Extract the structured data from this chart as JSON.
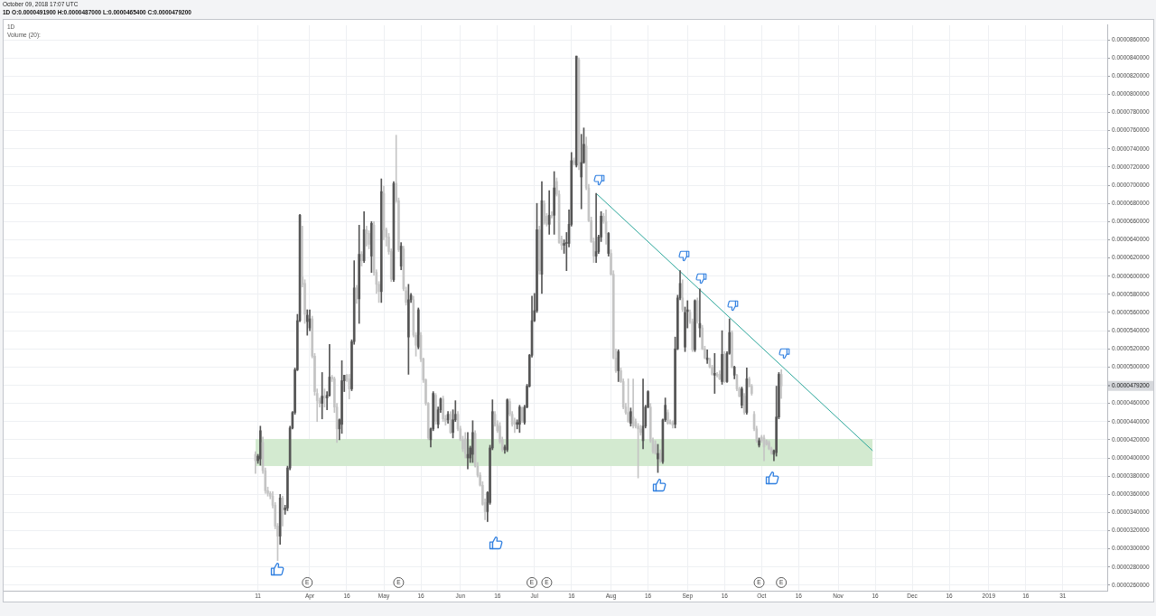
{
  "chart_data": {
    "type": "candlestick",
    "subtitle": "October 09, 2018 17:07 UTC",
    "title": "1D O:0.0000491900 H:0.0000487000 L:0.0000465400 C:0.0000479200",
    "x": [
      "2018-03-10",
      "2018-03-11",
      "2018-03-12",
      "2018-03-13",
      "2018-03-14",
      "2018-03-15",
      "2018-03-16",
      "2018-03-17",
      "2018-03-18",
      "2018-03-19",
      "2018-03-20",
      "2018-03-21",
      "2018-03-22",
      "2018-03-23",
      "2018-03-24",
      "2018-03-25",
      "2018-03-26",
      "2018-03-27",
      "2018-03-28",
      "2018-03-29",
      "2018-03-30",
      "2018-03-31",
      "2018-04-01",
      "2018-04-02",
      "2018-04-03",
      "2018-04-04",
      "2018-04-05",
      "2018-04-06",
      "2018-04-07",
      "2018-04-08",
      "2018-04-09",
      "2018-04-10",
      "2018-04-11",
      "2018-04-12",
      "2018-04-13",
      "2018-04-14",
      "2018-04-15",
      "2018-04-16",
      "2018-04-17",
      "2018-04-18",
      "2018-04-19",
      "2018-04-20",
      "2018-04-21",
      "2018-04-22",
      "2018-04-23",
      "2018-04-24",
      "2018-04-25",
      "2018-04-26",
      "2018-04-27",
      "2018-04-28",
      "2018-04-29",
      "2018-04-30",
      "2018-05-01",
      "2018-05-02",
      "2018-05-03",
      "2018-05-04",
      "2018-05-05",
      "2018-05-06",
      "2018-05-07",
      "2018-05-08",
      "2018-05-09",
      "2018-05-10",
      "2018-05-11",
      "2018-05-12",
      "2018-05-13",
      "2018-05-14",
      "2018-05-15",
      "2018-05-16",
      "2018-05-17",
      "2018-05-18",
      "2018-05-19",
      "2018-05-20",
      "2018-05-21",
      "2018-05-22",
      "2018-05-23",
      "2018-05-24",
      "2018-05-25",
      "2018-05-26",
      "2018-05-27",
      "2018-05-28",
      "2018-05-29",
      "2018-05-30",
      "2018-05-31",
      "2018-06-01",
      "2018-06-02",
      "2018-06-03",
      "2018-06-04",
      "2018-06-05",
      "2018-06-06",
      "2018-06-07",
      "2018-06-08",
      "2018-06-09",
      "2018-06-10",
      "2018-06-11",
      "2018-06-12",
      "2018-06-13",
      "2018-06-14",
      "2018-06-15",
      "2018-06-16",
      "2018-06-17",
      "2018-06-18",
      "2018-06-19",
      "2018-06-20",
      "2018-06-21",
      "2018-06-22",
      "2018-06-23",
      "2018-06-24",
      "2018-06-25",
      "2018-06-26",
      "2018-06-27",
      "2018-06-28",
      "2018-06-29",
      "2018-06-30",
      "2018-07-01",
      "2018-07-02",
      "2018-07-03",
      "2018-07-04",
      "2018-07-05",
      "2018-07-06",
      "2018-07-07",
      "2018-07-08",
      "2018-07-09",
      "2018-07-10",
      "2018-07-11",
      "2018-07-12",
      "2018-07-13",
      "2018-07-14",
      "2018-07-15",
      "2018-07-16",
      "2018-07-17",
      "2018-07-18",
      "2018-07-19",
      "2018-07-20",
      "2018-07-21",
      "2018-07-22",
      "2018-07-23",
      "2018-07-24",
      "2018-07-25",
      "2018-07-26",
      "2018-07-27",
      "2018-07-28",
      "2018-07-29",
      "2018-07-30",
      "2018-07-31",
      "2018-08-01",
      "2018-08-02",
      "2018-08-03",
      "2018-08-04",
      "2018-08-05",
      "2018-08-06",
      "2018-08-07",
      "2018-08-08",
      "2018-08-09",
      "2018-08-10",
      "2018-08-11",
      "2018-08-12",
      "2018-08-13",
      "2018-08-14",
      "2018-08-15",
      "2018-08-16",
      "2018-08-17",
      "2018-08-18",
      "2018-08-19",
      "2018-08-20",
      "2018-08-21",
      "2018-08-22",
      "2018-08-23",
      "2018-08-24",
      "2018-08-25",
      "2018-08-26",
      "2018-08-27",
      "2018-08-28",
      "2018-08-29",
      "2018-08-30",
      "2018-08-31",
      "2018-09-01",
      "2018-09-02",
      "2018-09-03",
      "2018-09-04",
      "2018-09-05",
      "2018-09-06",
      "2018-09-07",
      "2018-09-08",
      "2018-09-09",
      "2018-09-10",
      "2018-09-11",
      "2018-09-12",
      "2018-09-13",
      "2018-09-14",
      "2018-09-15",
      "2018-09-16",
      "2018-09-17",
      "2018-09-18",
      "2018-09-19",
      "2018-09-20",
      "2018-09-21",
      "2018-09-22",
      "2018-09-23",
      "2018-09-24",
      "2018-09-25",
      "2018-09-26",
      "2018-09-27",
      "2018-09-28",
      "2018-09-29",
      "2018-09-30",
      "2018-10-01",
      "2018-10-02",
      "2018-10-03",
      "2018-10-04",
      "2018-10-05",
      "2018-10-06",
      "2018-10-07",
      "2018-10-08",
      "2018-10-09"
    ],
    "ohlc": [
      [
        4.04e-05,
        4.07e-05,
        3.83e-05,
        3.97e-05
      ],
      [
        3.97e-05,
        4.04e-05,
        3.94e-05,
        4.02e-05
      ],
      [
        3.99e-05,
        4.35e-05,
        3.92e-05,
        4.3e-05
      ],
      [
        4.17e-05,
        4.23e-05,
        3.83e-05,
        3.86e-05
      ],
      [
        3.86e-05,
        3.89e-05,
        3.61e-05,
        3.64e-05
      ],
      [
        3.64e-05,
        3.68e-05,
        3.58e-05,
        3.61e-05
      ],
      [
        3.61e-05,
        3.63e-05,
        3.55e-05,
        3.58e-05
      ],
      [
        3.58e-05,
        3.63e-05,
        3.45e-05,
        3.48e-05
      ],
      [
        3.48e-05,
        3.51e-05,
        3.22e-05,
        3.25e-05
      ],
      [
        3.25e-05,
        3.28e-05,
        2.87e-05,
        3.14e-05
      ],
      [
        3.14e-05,
        3.6e-05,
        3.05e-05,
        3.56e-05
      ],
      [
        3.56e-05,
        3.58e-05,
        3.25e-05,
        3.43e-05
      ],
      [
        3.43e-05,
        3.48e-05,
        3.38e-05,
        3.45e-05
      ],
      [
        3.45e-05,
        3.91e-05,
        3.42e-05,
        3.89e-05
      ],
      [
        3.89e-05,
        4.35e-05,
        3.87e-05,
        4.33e-05
      ],
      [
        4.33e-05,
        4.51e-05,
        4.32e-05,
        4.5e-05
      ],
      [
        4.5e-05,
        4.99e-05,
        4.48e-05,
        4.97e-05
      ],
      [
        4.97e-05,
        5.58e-05,
        4.96e-05,
        5.51e-05
      ],
      [
        5.51e-05,
        6.68e-05,
        5.5e-05,
        6.67e-05
      ],
      [
        5.99e-05,
        6.55e-05,
        5.88e-05,
        5.91e-05
      ],
      [
        5.92e-05,
        5.96e-05,
        5.48e-05,
        5.58e-05
      ],
      [
        5.5e-05,
        5.63e-05,
        5.35e-05,
        5.57e-05
      ],
      [
        5.43e-05,
        5.63e-05,
        5.4e-05,
        5.53e-05
      ],
      [
        5.53e-05,
        5.56e-05,
        5.1e-05,
        5.12e-05
      ],
      [
        5.12e-05,
        5.15e-05,
        4.69e-05,
        4.73e-05
      ],
      [
        4.71e-05,
        4.76e-05,
        4.4e-05,
        4.63e-05
      ],
      [
        4.63e-05,
        4.66e-05,
        4.56e-05,
        4.6e-05
      ],
      [
        4.6e-05,
        4.94e-05,
        4.43e-05,
        4.68e-05
      ],
      [
        4.68e-05,
        4.76e-05,
        4.56e-05,
        4.66e-05
      ],
      [
        4.66e-05,
        4.73e-05,
        4.53e-05,
        4.69e-05
      ],
      [
        4.69e-05,
        5.25e-05,
        4.68e-05,
        4.89e-05
      ],
      [
        4.89e-05,
        4.91e-05,
        4.84e-05,
        4.87e-05
      ],
      [
        4.87e-05,
        4.89e-05,
        4.5e-05,
        4.56e-05
      ],
      [
        4.56e-05,
        4.6e-05,
        4.17e-05,
        4.32e-05
      ],
      [
        4.32e-05,
        4.43e-05,
        4.2e-05,
        4.42e-05
      ],
      [
        4.37e-05,
        5.07e-05,
        4.27e-05,
        4.85e-05
      ],
      [
        4.85e-05,
        4.91e-05,
        4.73e-05,
        4.91e-05
      ],
      [
        4.91e-05,
        4.92e-05,
        4.84e-05,
        4.87e-05
      ],
      [
        4.87e-05,
        4.92e-05,
        4.65e-05,
        4.76e-05
      ],
      [
        4.76e-05,
        5.3e-05,
        4.74e-05,
        5.28e-05
      ],
      [
        5.28e-05,
        6.17e-05,
        5.25e-05,
        5.87e-05
      ],
      [
        5.87e-05,
        5.9e-05,
        5.7e-05,
        5.75e-05
      ],
      [
        5.75e-05,
        6.56e-05,
        5.48e-05,
        6.24e-05
      ],
      [
        6.24e-05,
        6.27e-05,
        6.11e-05,
        6.17e-05
      ],
      [
        6.17e-05,
        6.71e-05,
        6.15e-05,
        6.51e-05
      ],
      [
        6.51e-05,
        6.55e-05,
        6.33e-05,
        6.47e-05
      ],
      [
        6.47e-05,
        6.5e-05,
        6.3e-05,
        6.35e-05
      ],
      [
        6.22e-05,
        6.6e-05,
        6.04e-05,
        6.58e-05
      ],
      [
        6.56e-05,
        6.6e-05,
        6.01e-05,
        6.04e-05
      ],
      [
        6.04e-05,
        6.07e-05,
        5.81e-05,
        5.91e-05
      ],
      [
        5.91e-05,
        5.94e-05,
        5.71e-05,
        5.83e-05
      ],
      [
        5.83e-05,
        7.07e-05,
        5.71e-05,
        6.93e-05
      ],
      [
        6.91e-05,
        6.99e-05,
        6.4e-05,
        6.51e-05
      ],
      [
        6.51e-05,
        6.53e-05,
        6.33e-05,
        6.43e-05
      ],
      [
        6.43e-05,
        6.47e-05,
        6.24e-05,
        6.27e-05
      ],
      [
        6.27e-05,
        6.3e-05,
        5.94e-05,
        5.97e-05
      ],
      [
        5.96e-05,
        7.04e-05,
        5.94e-05,
        7.02e-05
      ],
      [
        7.02e-05,
        7.55e-05,
        6.81e-05,
        6.83e-05
      ],
      [
        6.83e-05,
        6.86e-05,
        6.27e-05,
        6.29e-05
      ],
      [
        6.11e-05,
        6.37e-05,
        6.07e-05,
        6.33e-05
      ],
      [
        6.3e-05,
        6.33e-05,
        5.84e-05,
        5.86e-05
      ],
      [
        5.84e-05,
        5.88e-05,
        5.68e-05,
        5.71e-05
      ],
      [
        5.33e-05,
        5.91e-05,
        4.92e-05,
        5.74e-05
      ],
      [
        5.74e-05,
        5.81e-05,
        5.71e-05,
        5.79e-05
      ],
      [
        5.74e-05,
        5.78e-05,
        5.33e-05,
        5.35e-05
      ],
      [
        5.35e-05,
        5.38e-05,
        5.12e-05,
        5.24e-05
      ],
      [
        5.22e-05,
        5.65e-05,
        5.2e-05,
        5.63e-05
      ],
      [
        5.35e-05,
        5.38e-05,
        5.06e-05,
        5.09e-05
      ],
      [
        5.09e-05,
        5.1e-05,
        4.83e-05,
        4.86e-05
      ],
      [
        4.86e-05,
        4.87e-05,
        4.58e-05,
        4.6e-05
      ],
      [
        4.6e-05,
        4.61e-05,
        4.2e-05,
        4.22e-05
      ],
      [
        4.2e-05,
        4.33e-05,
        4.12e-05,
        4.32e-05
      ],
      [
        4.32e-05,
        4.73e-05,
        4.3e-05,
        4.71e-05
      ],
      [
        4.69e-05,
        4.71e-05,
        4.37e-05,
        4.4e-05
      ],
      [
        4.37e-05,
        4.56e-05,
        4.33e-05,
        4.53e-05
      ],
      [
        4.53e-05,
        4.66e-05,
        4.5e-05,
        4.65e-05
      ],
      [
        4.65e-05,
        4.68e-05,
        4.4e-05,
        4.43e-05
      ],
      [
        4.43e-05,
        4.47e-05,
        4.36e-05,
        4.4e-05
      ],
      [
        4.42e-05,
        4.51e-05,
        4.38e-05,
        4.48e-05
      ],
      [
        4.48e-05,
        4.51e-05,
        4.27e-05,
        4.28e-05
      ],
      [
        4.28e-05,
        4.53e-05,
        4.22e-05,
        4.42e-05
      ],
      [
        4.42e-05,
        4.63e-05,
        4.4e-05,
        4.48e-05
      ],
      [
        4.48e-05,
        4.51e-05,
        4.3e-05,
        4.32e-05
      ],
      [
        4.32e-05,
        4.35e-05,
        4.19e-05,
        4.2e-05
      ],
      [
        4.2e-05,
        4.24e-05,
        4.07e-05,
        4.1e-05
      ],
      [
        4.21e-05,
        4.28e-05,
        4e-05,
        4.05e-05
      ],
      [
        4e-05,
        4.28e-05,
        3.88e-05,
        4.04e-05
      ],
      [
        4e-05,
        4.13e-05,
        3.95e-05,
        4.11e-05
      ],
      [
        4.04e-05,
        4.41e-05,
        3.95e-05,
        4.28e-05
      ],
      [
        4.27e-05,
        4.3e-05,
        3.9e-05,
        3.91e-05
      ],
      [
        3.91e-05,
        3.95e-05,
        3.79e-05,
        3.81e-05
      ],
      [
        3.81e-05,
        3.84e-05,
        3.69e-05,
        3.7e-05
      ],
      [
        3.7e-05,
        3.74e-05,
        3.48e-05,
        3.49e-05
      ],
      [
        3.51e-05,
        3.55e-05,
        3.32e-05,
        3.41e-05
      ],
      [
        3.41e-05,
        3.63e-05,
        3.3e-05,
        3.62e-05
      ],
      [
        3.51e-05,
        4.14e-05,
        3.49e-05,
        4.11e-05
      ],
      [
        4.11e-05,
        4.64e-05,
        4.09e-05,
        4.51e-05
      ],
      [
        4.48e-05,
        4.51e-05,
        4.35e-05,
        4.37e-05
      ],
      [
        4.37e-05,
        4.41e-05,
        4.28e-05,
        4.3e-05
      ],
      [
        4.35e-05,
        4.39e-05,
        4.16e-05,
        4.18e-05
      ],
      [
        4.2e-05,
        4.23e-05,
        4.07e-05,
        4.09e-05
      ],
      [
        4.09e-05,
        4.14e-05,
        4.05e-05,
        4.12e-05
      ],
      [
        4.09e-05,
        4.65e-05,
        4.07e-05,
        4.64e-05
      ],
      [
        4.62e-05,
        4.65e-05,
        4.46e-05,
        4.48e-05
      ],
      [
        4.48e-05,
        4.51e-05,
        4.35e-05,
        4.37e-05
      ],
      [
        4.41e-05,
        4.44e-05,
        4.28e-05,
        4.37e-05
      ],
      [
        4.37e-05,
        4.42e-05,
        4.32e-05,
        4.39e-05
      ],
      [
        4.37e-05,
        4.58e-05,
        4.28e-05,
        4.56e-05
      ],
      [
        4.55e-05,
        4.56e-05,
        4.39e-05,
        4.41e-05
      ],
      [
        4.39e-05,
        4.58e-05,
        4.37e-05,
        4.56e-05
      ],
      [
        4.56e-05,
        4.81e-05,
        4.55e-05,
        4.79e-05
      ],
      [
        4.79e-05,
        5.14e-05,
        4.78e-05,
        5.13e-05
      ],
      [
        5.13e-05,
        5.78e-05,
        5.11e-05,
        5.51e-05
      ],
      [
        5.51e-05,
        5.81e-05,
        5.5e-05,
        5.62e-05
      ],
      [
        5.62e-05,
        6.8e-05,
        5.6e-05,
        6.51e-05
      ],
      [
        6.51e-05,
        6.55e-05,
        6.02e-05,
        6.06e-05
      ],
      [
        6.02e-05,
        7.04e-05,
        5.81e-05,
        6.83e-05
      ],
      [
        6.8e-05,
        6.83e-05,
        6.57e-05,
        6.59e-05
      ],
      [
        6.66e-05,
        6.69e-05,
        6.55e-05,
        6.57e-05
      ],
      [
        6.57e-05,
        6.94e-05,
        6.46e-05,
        6.67e-05
      ],
      [
        6.67e-05,
        6.71e-05,
        6.64e-05,
        6.66e-05
      ],
      [
        6.67e-05,
        7.15e-05,
        6.46e-05,
        6.97e-05
      ],
      [
        7.04e-05,
        7.08e-05,
        6.88e-05,
        6.9e-05
      ],
      [
        6.9e-05,
        6.94e-05,
        6.36e-05,
        6.37e-05
      ],
      [
        6.41e-05,
        6.44e-05,
        6.29e-05,
        6.34e-05
      ],
      [
        6.34e-05,
        6.4e-05,
        6.25e-05,
        6.36e-05
      ],
      [
        6.36e-05,
        6.48e-05,
        6.06e-05,
        6.37e-05
      ],
      [
        6.36e-05,
        6.73e-05,
        6.32e-05,
        6.57e-05
      ],
      [
        6.57e-05,
        7.36e-05,
        6.55e-05,
        7.27e-05
      ],
      [
        7.27e-05,
        7.3e-05,
        7.22e-05,
        7.24e-05
      ],
      [
        7.22e-05,
        8.42e-05,
        7.2e-05,
        8.42e-05
      ],
      [
        8.38e-05,
        8.4e-05,
        7.17e-05,
        7.24e-05
      ],
      [
        7.09e-05,
        7.56e-05,
        6.74e-05,
        7.25e-05
      ],
      [
        7.25e-05,
        7.63e-05,
        7.24e-05,
        7.45e-05
      ],
      [
        7.43e-05,
        7.53e-05,
        6.95e-05,
        6.97e-05
      ],
      [
        6.97e-05,
        7.01e-05,
        6.6e-05,
        6.61e-05
      ],
      [
        6.61e-05,
        6.65e-05,
        6.37e-05,
        6.38e-05
      ],
      [
        6.38e-05,
        6.42e-05,
        6.15e-05,
        6.22e-05
      ],
      [
        6.22e-05,
        6.91e-05,
        6.15e-05,
        6.27e-05
      ],
      [
        6.27e-05,
        6.45e-05,
        6.25e-05,
        6.43e-05
      ],
      [
        6.43e-05,
        6.71e-05,
        6.38e-05,
        6.66e-05
      ],
      [
        6.66e-05,
        6.69e-05,
        6.58e-05,
        6.6e-05
      ],
      [
        6.6e-05,
        6.73e-05,
        6.35e-05,
        6.47e-05
      ],
      [
        6.25e-05,
        6.48e-05,
        6.22e-05,
        6.47e-05
      ],
      [
        6.25e-05,
        6.29e-05,
        6.01e-05,
        6.02e-05
      ],
      [
        6.02e-05,
        6.06e-05,
        5.09e-05,
        5.1e-05
      ],
      [
        5.1e-05,
        5.2e-05,
        4.94e-05,
        4.96e-05
      ],
      [
        4.96e-05,
        5.19e-05,
        4.84e-05,
        5.17e-05
      ],
      [
        4.96e-05,
        4.99e-05,
        4.83e-05,
        4.84e-05
      ],
      [
        4.84e-05,
        4.87e-05,
        4.54e-05,
        4.56e-05
      ],
      [
        4.56e-05,
        4.6e-05,
        4.48e-05,
        4.5e-05
      ],
      [
        4.5e-05,
        4.87e-05,
        4.39e-05,
        4.4e-05
      ],
      [
        4.38e-05,
        4.55e-05,
        4.35e-05,
        4.51e-05
      ],
      [
        4.45e-05,
        4.87e-05,
        4.33e-05,
        4.35e-05
      ],
      [
        4.4e-05,
        4.43e-05,
        4.33e-05,
        4.35e-05
      ],
      [
        4.35e-05,
        4.38e-05,
        3.78e-05,
        4.32e-05
      ],
      [
        4.32e-05,
        4.36e-05,
        4.25e-05,
        4.28e-05
      ],
      [
        4.19e-05,
        4.87e-05,
        4.1e-05,
        4.35e-05
      ],
      [
        4.35e-05,
        4.58e-05,
        4.33e-05,
        4.56e-05
      ],
      [
        4.56e-05,
        4.74e-05,
        4.55e-05,
        4.73e-05
      ],
      [
        4.56e-05,
        4.6e-05,
        4.17e-05,
        4.19e-05
      ],
      [
        4.19e-05,
        4.22e-05,
        4.05e-05,
        4.07e-05
      ],
      [
        4.15e-05,
        4.19e-05,
        4.04e-05,
        4.05e-05
      ],
      [
        3.99e-05,
        4.15e-05,
        3.84e-05,
        4.05e-05
      ],
      [
        4.05e-05,
        4.09e-05,
        3.95e-05,
        3.96e-05
      ],
      [
        3.96e-05,
        4.43e-05,
        3.94e-05,
        4.42e-05
      ],
      [
        4.42e-05,
        4.66e-05,
        4.4e-05,
        4.58e-05
      ],
      [
        4.5e-05,
        4.53e-05,
        4.37e-05,
        4.38e-05
      ],
      [
        4.4e-05,
        4.42e-05,
        4.37e-05,
        4.38e-05
      ],
      [
        4.38e-05,
        4.41e-05,
        4.33e-05,
        4.36e-05
      ],
      [
        4.37e-05,
        5.33e-05,
        4.33e-05,
        5.2e-05
      ],
      [
        5.2e-05,
        5.79e-05,
        5.19e-05,
        5.76e-05
      ],
      [
        5.76e-05,
        6.06e-05,
        5.74e-05,
        5.92e-05
      ],
      [
        5.76e-05,
        5.96e-05,
        5.61e-05,
        5.63e-05
      ],
      [
        5.22e-05,
        5.66e-05,
        5.17e-05,
        5.6e-05
      ],
      [
        5.61e-05,
        5.73e-05,
        5.43e-05,
        5.63e-05
      ],
      [
        5.6e-05,
        5.63e-05,
        5.48e-05,
        5.5e-05
      ],
      [
        5.5e-05,
        5.53e-05,
        5.17e-05,
        5.19e-05
      ],
      [
        5.19e-05,
        5.74e-05,
        5.17e-05,
        5.73e-05
      ],
      [
        5.73e-05,
        5.76e-05,
        5.48e-05,
        5.5e-05
      ],
      [
        5.43e-05,
        5.86e-05,
        5.33e-05,
        5.48e-05
      ],
      [
        5.43e-05,
        5.46e-05,
        5.19e-05,
        5.2e-05
      ],
      [
        5.2e-05,
        5.23e-05,
        5.09e-05,
        5.1e-05
      ],
      [
        5.08e-05,
        5.19e-05,
        5.04e-05,
        5.1e-05
      ],
      [
        5.09e-05,
        5.1e-05,
        4.99e-05,
        5e-05
      ],
      [
        5e-05,
        5.02e-05,
        4.91e-05,
        4.92e-05
      ],
      [
        4.91e-05,
        5.15e-05,
        4.71e-05,
        4.93e-05
      ],
      [
        4.92e-05,
        4.94e-05,
        4.89e-05,
        4.91e-05
      ],
      [
        4.92e-05,
        4.96e-05,
        4.86e-05,
        4.87e-05
      ],
      [
        4.84e-05,
        5.4e-05,
        4.81e-05,
        5.14e-05
      ],
      [
        5.14e-05,
        5.17e-05,
        4.83e-05,
        4.84e-05
      ],
      [
        4.84e-05,
        5.17e-05,
        4.83e-05,
        5.15e-05
      ],
      [
        5.15e-05,
        5.53e-05,
        5.14e-05,
        5.38e-05
      ],
      [
        5.38e-05,
        5.4e-05,
        4.99e-05,
        5e-05
      ],
      [
        4.91e-05,
        5.01e-05,
        4.87e-05,
        5e-05
      ],
      [
        4.91e-05,
        4.92e-05,
        4.74e-05,
        4.76e-05
      ],
      [
        4.76e-05,
        4.78e-05,
        4.67e-05,
        4.68e-05
      ],
      [
        4.58e-05,
        4.78e-05,
        4.55e-05,
        4.76e-05
      ],
      [
        4.68e-05,
        4.71e-05,
        4.48e-05,
        4.5e-05
      ],
      [
        4.5e-05,
        4.99e-05,
        4.48e-05,
        4.87e-05
      ],
      [
        4.87e-05,
        4.89e-05,
        4.78e-05,
        4.79e-05
      ],
      [
        4.79e-05,
        4.81e-05,
        4.69e-05,
        4.71e-05
      ],
      [
        4.48e-05,
        4.51e-05,
        4.3e-05,
        4.32e-05
      ],
      [
        4.32e-05,
        4.35e-05,
        4.17e-05,
        4.19e-05
      ],
      [
        4.14e-05,
        4.22e-05,
        4.12e-05,
        4.19e-05
      ],
      [
        4.23e-05,
        4.25e-05,
        4.17e-05,
        4.19e-05
      ],
      [
        4.22e-05,
        4.25e-05,
        3.97e-05,
        4.12e-05
      ],
      [
        4.19e-05,
        4.2e-05,
        4.14e-05,
        4.15e-05
      ],
      [
        4.17e-05,
        4.19e-05,
        4.09e-05,
        4.1e-05
      ],
      [
        4.1e-05,
        4.12e-05,
        4.04e-05,
        4.05e-05
      ],
      [
        4.04e-05,
        4.09e-05,
        3.97e-05,
        4.08e-05
      ],
      [
        4.06e-05,
        4.79e-05,
        4.02e-05,
        4.45e-05
      ],
      [
        4.45e-05,
        4.94e-05,
        4.43e-05,
        4.92e-05
      ],
      [
        4.919e-05,
        4.97e-05,
        4.654e-05,
        4.792e-05
      ]
    ],
    "colors": [
      "#c4c4c4",
      "#555555",
      "#555555",
      "#c4c4c4",
      "#c4c4c4",
      "#c4c4c4",
      "#c4c4c4",
      "#c4c4c4",
      "#c4c4c4",
      "#c4c4c4",
      "#555555",
      "#c4c4c4",
      "#555555",
      "#555555",
      "#555555",
      "#555555",
      "#555555",
      "#555555",
      "#555555",
      "#c4c4c4",
      "#c4c4c4",
      "#555555",
      "#555555",
      "#c4c4c4",
      "#c4c4c4",
      "#c4c4c4",
      "#c4c4c4",
      "#555555",
      "#c4c4c4",
      "#555555",
      "#555555",
      "#c4c4c4",
      "#c4c4c4",
      "#c4c4c4",
      "#555555",
      "#555555",
      "#555555",
      "#c4c4c4",
      "#c4c4c4",
      "#555555",
      "#555555",
      "#c4c4c4",
      "#555555",
      "#c4c4c4",
      "#555555",
      "#c4c4c4",
      "#c4c4c4",
      "#555555",
      "#c4c4c4",
      "#c4c4c4",
      "#c4c4c4",
      "#555555",
      "#c4c4c4",
      "#c4c4c4",
      "#c4c4c4",
      "#c4c4c4",
      "#555555",
      "#c4c4c4",
      "#c4c4c4",
      "#555555",
      "#c4c4c4",
      "#c4c4c4",
      "#555555",
      "#555555",
      "#c4c4c4",
      "#c4c4c4",
      "#555555",
      "#c4c4c4",
      "#c4c4c4",
      "#c4c4c4",
      "#c4c4c4",
      "#555555",
      "#555555",
      "#c4c4c4",
      "#555555",
      "#555555",
      "#c4c4c4",
      "#c4c4c4",
      "#555555",
      "#c4c4c4",
      "#555555",
      "#555555",
      "#c4c4c4",
      "#c4c4c4",
      "#c4c4c4",
      "#c4c4c4",
      "#555555",
      "#555555",
      "#555555",
      "#c4c4c4",
      "#c4c4c4",
      "#c4c4c4",
      "#c4c4c4",
      "#c4c4c4",
      "#555555",
      "#555555",
      "#555555",
      "#c4c4c4",
      "#c4c4c4",
      "#c4c4c4",
      "#c4c4c4",
      "#555555",
      "#555555",
      "#c4c4c4",
      "#c4c4c4",
      "#c4c4c4",
      "#555555",
      "#555555",
      "#c4c4c4",
      "#555555",
      "#555555",
      "#555555",
      "#555555",
      "#555555",
      "#555555",
      "#c4c4c4",
      "#555555",
      "#c4c4c4",
      "#c4c4c4",
      "#555555",
      "#c4c4c4",
      "#555555",
      "#c4c4c4",
      "#c4c4c4",
      "#c4c4c4",
      "#555555",
      "#555555",
      "#555555",
      "#555555",
      "#c4c4c4",
      "#555555",
      "#c4c4c4",
      "#555555",
      "#555555",
      "#c4c4c4",
      "#c4c4c4",
      "#c4c4c4",
      "#c4c4c4",
      "#555555",
      "#555555",
      "#555555",
      "#c4c4c4",
      "#c4c4c4",
      "#555555",
      "#c4c4c4",
      "#c4c4c4",
      "#c4c4c4",
      "#555555",
      "#c4c4c4",
      "#c4c4c4",
      "#c4c4c4",
      "#c4c4c4",
      "#555555",
      "#c4c4c4",
      "#c4c4c4",
      "#c4c4c4",
      "#c4c4c4",
      "#555555",
      "#555555",
      "#555555",
      "#c4c4c4",
      "#c4c4c4",
      "#c4c4c4",
      "#555555",
      "#c4c4c4",
      "#555555",
      "#555555",
      "#c4c4c4",
      "#c4c4c4",
      "#c4c4c4",
      "#555555",
      "#555555",
      "#555555",
      "#c4c4c4",
      "#555555",
      "#555555",
      "#c4c4c4",
      "#c4c4c4",
      "#555555",
      "#c4c4c4",
      "#555555",
      "#c4c4c4",
      "#c4c4c4",
      "#555555",
      "#c4c4c4",
      "#c4c4c4",
      "#555555",
      "#c4c4c4",
      "#c4c4c4",
      "#555555",
      "#c4c4c4",
      "#555555",
      "#555555",
      "#c4c4c4",
      "#555555",
      "#c4c4c4",
      "#c4c4c4",
      "#555555",
      "#c4c4c4",
      "#555555",
      "#c4c4c4",
      "#c4c4c4",
      "#c4c4c4",
      "#c4c4c4",
      "#555555",
      "#c4c4c4",
      "#c4c4c4",
      "#c4c4c4",
      "#c4c4c4",
      "#c4c4c4",
      "#555555",
      "#555555",
      "#555555",
      "#c4c4c4"
    ],
    "series": [
      {
        "type": "area",
        "x": [
          "2018-03-10",
          "2018-11-15"
        ],
        "values": [
          null,
          null
        ],
        "lower": [
          3.91e-05,
          3.91e-05
        ],
        "upper": [
          4.21e-05,
          4.21e-05
        ],
        "color": "#d3ead0"
      },
      {
        "type": "line",
        "x": [
          "2018-07-26",
          "2018-11-15"
        ],
        "values": [
          6.91e-05,
          4.08e-05
        ],
        "color": "#2aa69a"
      }
    ],
    "xlim": [
      "2017-11-28",
      "2019-02-18"
    ],
    "xticks": [
      {
        "value": "2018-03-11",
        "label": "11"
      },
      {
        "value": "2018-04-01",
        "label": "Apr"
      },
      {
        "value": "2018-04-16",
        "label": "16"
      },
      {
        "value": "2018-05-01",
        "label": "May"
      },
      {
        "value": "2018-05-16",
        "label": "16"
      },
      {
        "value": "2018-06-01",
        "label": "Jun"
      },
      {
        "value": "2018-06-16",
        "label": "16"
      },
      {
        "value": "2018-07-01",
        "label": "Jul"
      },
      {
        "value": "2018-07-16",
        "label": "16"
      },
      {
        "value": "2018-08-01",
        "label": "Aug"
      },
      {
        "value": "2018-08-16",
        "label": "16"
      },
      {
        "value": "2018-09-01",
        "label": "Sep"
      },
      {
        "value": "2018-09-16",
        "label": "16"
      },
      {
        "value": "2018-10-01",
        "label": "Oct"
      },
      {
        "value": "2018-10-16",
        "label": "16"
      },
      {
        "value": "2018-11-01",
        "label": "Nov"
      },
      {
        "value": "2018-11-16",
        "label": "16"
      },
      {
        "value": "2018-12-01",
        "label": "Dec"
      },
      {
        "value": "2018-12-16",
        "label": "16"
      },
      {
        "value": "2019-01-01",
        "label": "2019"
      },
      {
        "value": "2019-01-16",
        "label": "16"
      },
      {
        "value": "2019-01-31",
        "label": "31"
      }
    ],
    "ylim": [
      2.54e-05,
      8.76e-05
    ],
    "yticks": [
      {
        "value": 2.6e-05,
        "label": "0.0000260000"
      },
      {
        "value": 2.8e-05,
        "label": "0.0000280000"
      },
      {
        "value": 3e-05,
        "label": "0.0000300000"
      },
      {
        "value": 3.2e-05,
        "label": "0.0000320000"
      },
      {
        "value": 3.4e-05,
        "label": "0.0000340000"
      },
      {
        "value": 3.6e-05,
        "label": "0.0000360000"
      },
      {
        "value": 3.8e-05,
        "label": "0.0000380000"
      },
      {
        "value": 4e-05,
        "label": "0.0000400000"
      },
      {
        "value": 4.2e-05,
        "label": "0.0000420000"
      },
      {
        "value": 4.4e-05,
        "label": "0.0000440000"
      },
      {
        "value": 4.6e-05,
        "label": "0.0000460000"
      },
      {
        "value": 4.792e-05,
        "label": "0.0000479200"
      },
      {
        "value": 4.8e-05,
        "label": null
      },
      {
        "value": 5e-05,
        "label": "0.0000500000"
      },
      {
        "value": 5.2e-05,
        "label": "0.0000520000"
      },
      {
        "value": 5.4e-05,
        "label": "0.0000540000"
      },
      {
        "value": 5.6e-05,
        "label": "0.0000560000"
      },
      {
        "value": 5.8e-05,
        "label": "0.0000580000"
      },
      {
        "value": 6e-05,
        "label": "0.0000600000"
      },
      {
        "value": 6.2e-05,
        "label": "0.0000620000"
      },
      {
        "value": 6.4e-05,
        "label": "0.0000640000"
      },
      {
        "value": 6.6e-05,
        "label": "0.0000660000"
      },
      {
        "value": 6.8e-05,
        "label": "0.0000680000"
      },
      {
        "value": 7e-05,
        "label": "0.0000700000"
      },
      {
        "value": 7.2e-05,
        "label": "0.0000720000"
      },
      {
        "value": 7.4e-05,
        "label": "0.0000740000"
      },
      {
        "value": 7.6e-05,
        "label": "0.0000760000"
      },
      {
        "value": 7.8e-05,
        "label": "0.0000780000"
      },
      {
        "value": 8e-05,
        "label": "0.0000800000"
      },
      {
        "value": 8.2e-05,
        "label": "0.0000820000"
      },
      {
        "value": 8.4e-05,
        "label": "0.0000840000"
      },
      {
        "value": 8.6e-05,
        "label": "0.0000860000"
      }
    ],
    "grid": true,
    "annotations": [
      "1D",
      "Volume (20):",
      {
        "text": "E",
        "x": "2018-03-31",
        "y": 2.63e-05
      },
      {
        "text": "E",
        "x": "2018-05-07",
        "y": 2.63e-05
      },
      {
        "text": "E",
        "x": "2018-06-30",
        "y": 2.63e-05
      },
      {
        "text": "E",
        "x": "2018-07-06",
        "y": 2.63e-05
      },
      {
        "text": "E",
        "x": "2018-09-30",
        "y": 2.63e-05
      },
      {
        "text": "E",
        "x": "2018-10-09",
        "y": 2.63e-05
      }
    ]
  }
}
